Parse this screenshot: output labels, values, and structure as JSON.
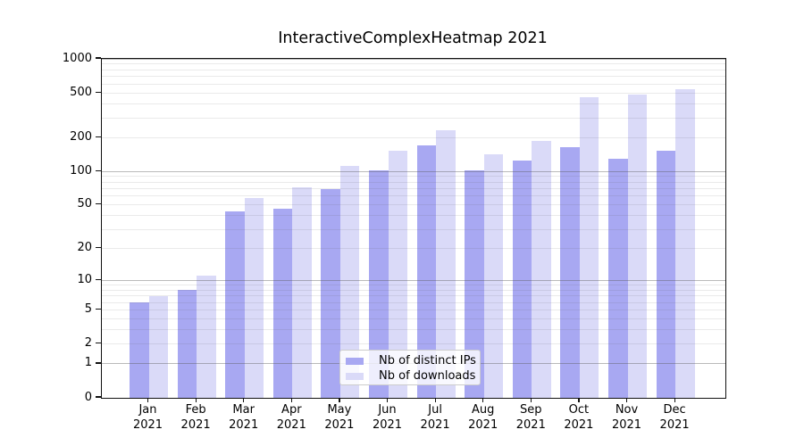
{
  "chart_data": {
    "type": "bar",
    "title": "InteractiveComplexHeatmap 2021",
    "categories": [
      "Jan",
      "Feb",
      "Mar",
      "Apr",
      "May",
      "Jun",
      "Jul",
      "Aug",
      "Sep",
      "Oct",
      "Nov",
      "Dec"
    ],
    "x_year_label": "2021",
    "series": [
      {
        "name": "Nb of distinct IPs",
        "color": "#a8a8f2",
        "values": [
          6,
          8,
          44,
          46,
          69,
          103,
          170,
          103,
          124,
          166,
          130,
          152
        ]
      },
      {
        "name": "Nb of downloads",
        "color": "#dadaf8",
        "values": [
          7,
          11,
          58,
          72,
          112,
          154,
          232,
          141,
          187,
          456,
          482,
          541
        ]
      }
    ],
    "y_scale": "log1p",
    "ylim": [
      0,
      1000
    ],
    "y_ticks": [
      0,
      1,
      2,
      5,
      10,
      20,
      50,
      100,
      200,
      500,
      1000
    ],
    "y_major_gridlines": [
      1,
      10,
      100,
      1000
    ],
    "y_minor_gridlines": [
      2,
      3,
      4,
      5,
      6,
      7,
      8,
      9,
      20,
      30,
      40,
      50,
      60,
      70,
      80,
      90,
      200,
      300,
      400,
      500,
      600,
      700,
      800,
      900
    ],
    "grid": "on",
    "legend_position": "bottom-center",
    "axis_color": "#111111",
    "grid_color": "#808080",
    "background_color": "#ffffff"
  }
}
